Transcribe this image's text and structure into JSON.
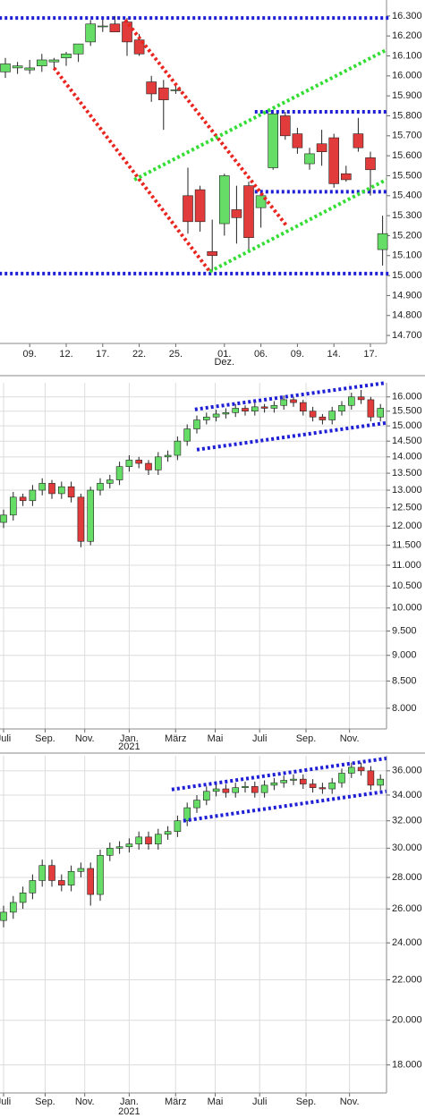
{
  "chart_data": [
    {
      "type": "candlestick",
      "log_scale": false,
      "grid": false,
      "up_color": "#66dd66",
      "down_color": "#e23b3b",
      "ylim": [
        14660,
        16380
      ],
      "yticks": [
        {
          "value": 16300,
          "label": "16.300"
        },
        {
          "value": 16200,
          "label": "16.200"
        },
        {
          "value": 16100,
          "label": "16.100"
        },
        {
          "value": 16000,
          "label": "16.000"
        },
        {
          "value": 15900,
          "label": "15.900"
        },
        {
          "value": 15800,
          "label": "15.800"
        },
        {
          "value": 15700,
          "label": "15.700"
        },
        {
          "value": 15600,
          "label": "15.600"
        },
        {
          "value": 15500,
          "label": "15.500"
        },
        {
          "value": 15400,
          "label": "15.400"
        },
        {
          "value": 15300,
          "label": "15.300"
        },
        {
          "value": 15200,
          "label": "15.200"
        },
        {
          "value": 15100,
          "label": "15.100"
        },
        {
          "value": 15000,
          "label": "15.000"
        },
        {
          "value": 14900,
          "label": "14.900"
        },
        {
          "value": 14800,
          "label": "14.800"
        },
        {
          "value": 14700,
          "label": "14.700"
        }
      ],
      "xticks": [
        {
          "value": 2,
          "label": "09."
        },
        {
          "value": 5,
          "label": "12."
        },
        {
          "value": 8,
          "label": "17."
        },
        {
          "value": 11,
          "label": "22."
        },
        {
          "value": 14,
          "label": "25."
        },
        {
          "value": 18,
          "label": "01."
        },
        {
          "value": 21,
          "label": "06."
        },
        {
          "value": 24,
          "label": "09."
        },
        {
          "value": 27,
          "label": "14."
        },
        {
          "value": 30,
          "label": "17."
        }
      ],
      "x_sublabels": [
        {
          "value": 18,
          "label": "Dez."
        }
      ],
      "open": [
        16020,
        16040,
        16030,
        16050,
        16070,
        16090,
        16110,
        16170,
        16250,
        16260,
        16270,
        16180,
        15970,
        15940,
        15930,
        15400,
        15430,
        15120,
        15260,
        15330,
        15450,
        15340,
        15540,
        15800,
        15710,
        15560,
        15660,
        15690,
        15510,
        15710,
        15590,
        15130
      ],
      "high": [
        16090,
        16070,
        16080,
        16110,
        16090,
        16120,
        16160,
        16280,
        16290,
        16300,
        16290,
        16210,
        16000,
        15980,
        15950,
        15540,
        15450,
        15280,
        15510,
        15450,
        15470,
        15430,
        15830,
        15820,
        15740,
        15640,
        15730,
        15710,
        15550,
        15790,
        15620,
        15300
      ],
      "low": [
        15990,
        16010,
        16010,
        16020,
        16040,
        16050,
        16070,
        16150,
        16220,
        16220,
        16100,
        16100,
        15870,
        15730,
        15910,
        15210,
        15220,
        15020,
        15200,
        15160,
        15130,
        15240,
        15530,
        15680,
        15610,
        15530,
        15550,
        15440,
        15470,
        15620,
        15400,
        15050
      ],
      "close": [
        16060,
        16050,
        16040,
        16080,
        16080,
        16110,
        16160,
        16260,
        16250,
        16220,
        16170,
        16110,
        15910,
        15880,
        15930,
        15270,
        15270,
        15100,
        15500,
        15290,
        15190,
        15400,
        15810,
        15700,
        15640,
        15610,
        15620,
        15460,
        15480,
        15640,
        15530,
        15210
      ],
      "lines": [
        {
          "color": "#1f1fd6",
          "x": [
            -0.5,
            31.5
          ],
          "values": [
            16290,
            16290
          ]
        },
        {
          "color": "#1f1fd6",
          "x": [
            -0.5,
            31.5
          ],
          "values": [
            15010,
            15010
          ]
        },
        {
          "color": "#1f1fd6",
          "x": [
            20.5,
            31.5
          ],
          "values": [
            15820,
            15820
          ]
        },
        {
          "color": "#1f1fd6",
          "x": [
            20.5,
            31.5
          ],
          "values": [
            15420,
            15420
          ]
        },
        {
          "color": "#e8251e",
          "x": [
            4,
            16.8
          ],
          "values": [
            16040,
            15020
          ]
        },
        {
          "color": "#e8251e",
          "x": [
            9.85,
            23.1
          ],
          "values": [
            16280,
            15250
          ]
        },
        {
          "color": "#33dd33",
          "x": [
            10.6,
            31.3
          ],
          "values": [
            15480,
            16130
          ]
        },
        {
          "color": "#33dd33",
          "x": [
            16.8,
            31.3
          ],
          "values": [
            15020,
            15480
          ]
        }
      ]
    },
    {
      "type": "candlestick",
      "log_scale": true,
      "grid": true,
      "up_color": "#66dd66",
      "down_color": "#e23b3b",
      "ylim": [
        7640,
        16510
      ],
      "yticks": [
        {
          "value": 16000,
          "label": "16.000"
        },
        {
          "value": 15500,
          "label": "15.500"
        },
        {
          "value": 15000,
          "label": "15.000"
        },
        {
          "value": 14500,
          "label": "14.500"
        },
        {
          "value": 14000,
          "label": "14.000"
        },
        {
          "value": 13500,
          "label": "13.500"
        },
        {
          "value": 13000,
          "label": "13.000"
        },
        {
          "value": 12500,
          "label": "12.500"
        },
        {
          "value": 12000,
          "label": "12.000"
        },
        {
          "value": 11500,
          "label": "11.500"
        },
        {
          "value": 11000,
          "label": "11.000"
        },
        {
          "value": 10500,
          "label": "10.500"
        },
        {
          "value": 10000,
          "label": "10.000"
        },
        {
          "value": 9500,
          "label": "9.500"
        },
        {
          "value": 9000,
          "label": "9.000"
        },
        {
          "value": 8500,
          "label": "8.500"
        },
        {
          "value": 8000,
          "label": "8.000"
        }
      ],
      "xticks": [
        {
          "value": 0,
          "label": "Juli"
        },
        {
          "value": 4.3,
          "label": "Sep."
        },
        {
          "value": 8.4,
          "label": "Nov."
        },
        {
          "value": 13,
          "label": "Jan."
        },
        {
          "value": 17.8,
          "label": "März"
        },
        {
          "value": 21.9,
          "label": "Mai"
        },
        {
          "value": 26.5,
          "label": "Juli"
        },
        {
          "value": 31.3,
          "label": "Sep."
        },
        {
          "value": 35.8,
          "label": "Nov."
        }
      ],
      "x_sublabels": [
        {
          "value": 13,
          "label": "2021"
        }
      ],
      "open": [
        12100,
        12300,
        12800,
        12700,
        13000,
        13200,
        12900,
        13100,
        12800,
        11600,
        13000,
        13200,
        13300,
        13700,
        13900,
        13800,
        13600,
        14000,
        14050,
        14500,
        14900,
        15200,
        15300,
        15400,
        15450,
        15600,
        15500,
        15650,
        15600,
        15700,
        15900,
        15800,
        15500,
        15300,
        15200,
        15500,
        15700,
        16000,
        15900,
        15300
      ],
      "high": [
        12450,
        12950,
        12900,
        13150,
        13350,
        13300,
        13250,
        13250,
        12900,
        13100,
        13350,
        13450,
        13850,
        14050,
        14000,
        13900,
        14150,
        14200,
        14650,
        15050,
        15350,
        15450,
        15550,
        15600,
        15750,
        15700,
        15800,
        15750,
        15850,
        16050,
        16000,
        15900,
        15650,
        15400,
        15650,
        15850,
        16150,
        16250,
        16000,
        15750
      ],
      "low": [
        11950,
        12150,
        12550,
        12550,
        12850,
        12750,
        12750,
        12650,
        11450,
        11500,
        12850,
        13050,
        13150,
        13550,
        13650,
        13450,
        13450,
        13850,
        13900,
        14350,
        14750,
        15050,
        15150,
        15250,
        15300,
        15350,
        15350,
        15450,
        15450,
        15550,
        15650,
        15350,
        15150,
        15050,
        15050,
        15350,
        15550,
        15750,
        15150,
        15150
      ],
      "close": [
        12300,
        12800,
        12700,
        13000,
        13200,
        12900,
        13100,
        12800,
        11600,
        13000,
        13200,
        13300,
        13700,
        13900,
        13800,
        13600,
        14000,
        14050,
        14500,
        14900,
        15200,
        15300,
        15400,
        15450,
        15600,
        15500,
        15650,
        15600,
        15700,
        15900,
        15800,
        15500,
        15300,
        15200,
        15500,
        15700,
        16000,
        15900,
        15300,
        15600
      ],
      "lines": [
        {
          "color": "#1f1fd6",
          "x": [
            19.8,
            39.6
          ],
          "values": [
            15560,
            16510
          ]
        },
        {
          "color": "#1f1fd6",
          "x": [
            20,
            39.6
          ],
          "values": [
            14226,
            15100
          ]
        }
      ]
    },
    {
      "type": "candlestick",
      "log_scale": true,
      "grid": true,
      "up_color": "#66dd66",
      "down_color": "#e23b3b",
      "ylim": [
        16850,
        37300
      ],
      "yticks": [
        {
          "value": 36000,
          "label": "36.000"
        },
        {
          "value": 34000,
          "label": "34.000"
        },
        {
          "value": 32000,
          "label": "32.000"
        },
        {
          "value": 30000,
          "label": "30.000"
        },
        {
          "value": 28000,
          "label": "28.000"
        },
        {
          "value": 26000,
          "label": "26.000"
        },
        {
          "value": 24000,
          "label": "24.000"
        },
        {
          "value": 22000,
          "label": "22.000"
        },
        {
          "value": 20000,
          "label": "20.000"
        },
        {
          "value": 18000,
          "label": "18.000"
        }
      ],
      "xticks": [
        {
          "value": 0,
          "label": "Juli"
        },
        {
          "value": 4.3,
          "label": "Sep."
        },
        {
          "value": 8.4,
          "label": "Nov."
        },
        {
          "value": 13,
          "label": "Jan."
        },
        {
          "value": 17.8,
          "label": "März"
        },
        {
          "value": 21.9,
          "label": "Mai"
        },
        {
          "value": 26.5,
          "label": "Juli"
        },
        {
          "value": 31.3,
          "label": "Sep."
        },
        {
          "value": 35.8,
          "label": "Nov."
        }
      ],
      "x_sublabels": [
        {
          "value": 13,
          "label": "2021"
        }
      ],
      "open": [
        25300,
        25800,
        26400,
        27000,
        27800,
        28800,
        27800,
        27500,
        28400,
        28600,
        26900,
        29500,
        30000,
        30100,
        30300,
        30800,
        30300,
        31000,
        31200,
        32000,
        33000,
        33600,
        34300,
        34500,
        34200,
        34600,
        34700,
        34200,
        34800,
        35000,
        35200,
        35300,
        34900,
        34600,
        34500,
        35000,
        35800,
        36300,
        36000,
        34800
      ],
      "high": [
        26200,
        26800,
        27400,
        28200,
        29200,
        29200,
        28200,
        28800,
        29000,
        29000,
        29900,
        30400,
        30500,
        30700,
        31200,
        31200,
        31400,
        31600,
        32400,
        33400,
        34000,
        34700,
        34900,
        34900,
        35000,
        35100,
        35100,
        35200,
        35400,
        35600,
        35700,
        35700,
        35300,
        35000,
        35400,
        36200,
        36700,
        36700,
        36400,
        35700
      ],
      "low": [
        24900,
        25400,
        26000,
        26600,
        27400,
        27400,
        27100,
        27100,
        28000,
        26200,
        26500,
        29100,
        29600,
        29700,
        29900,
        29900,
        29900,
        30600,
        30800,
        31600,
        32600,
        33200,
        33900,
        33800,
        33800,
        34200,
        33800,
        33800,
        34400,
        34600,
        34800,
        34500,
        34200,
        34100,
        34100,
        34600,
        35400,
        35600,
        34400,
        34400
      ],
      "close": [
        25800,
        26400,
        27000,
        27800,
        28800,
        27800,
        27500,
        28400,
        28600,
        26900,
        29500,
        30000,
        30100,
        30300,
        30800,
        30300,
        31000,
        31200,
        32000,
        33000,
        33600,
        34300,
        34500,
        34200,
        34600,
        34700,
        34200,
        34800,
        35000,
        35200,
        35300,
        34900,
        34600,
        34500,
        35000,
        35800,
        36300,
        36000,
        34800,
        35300
      ],
      "lines": [
        {
          "color": "#1f1fd6",
          "x": [
            17.4,
            39.6
          ],
          "values": [
            34450,
            37070
          ]
        },
        {
          "color": "#1f1fd6",
          "x": [
            18.6,
            39.6
          ],
          "values": [
            32000,
            34300
          ]
        }
      ]
    }
  ]
}
